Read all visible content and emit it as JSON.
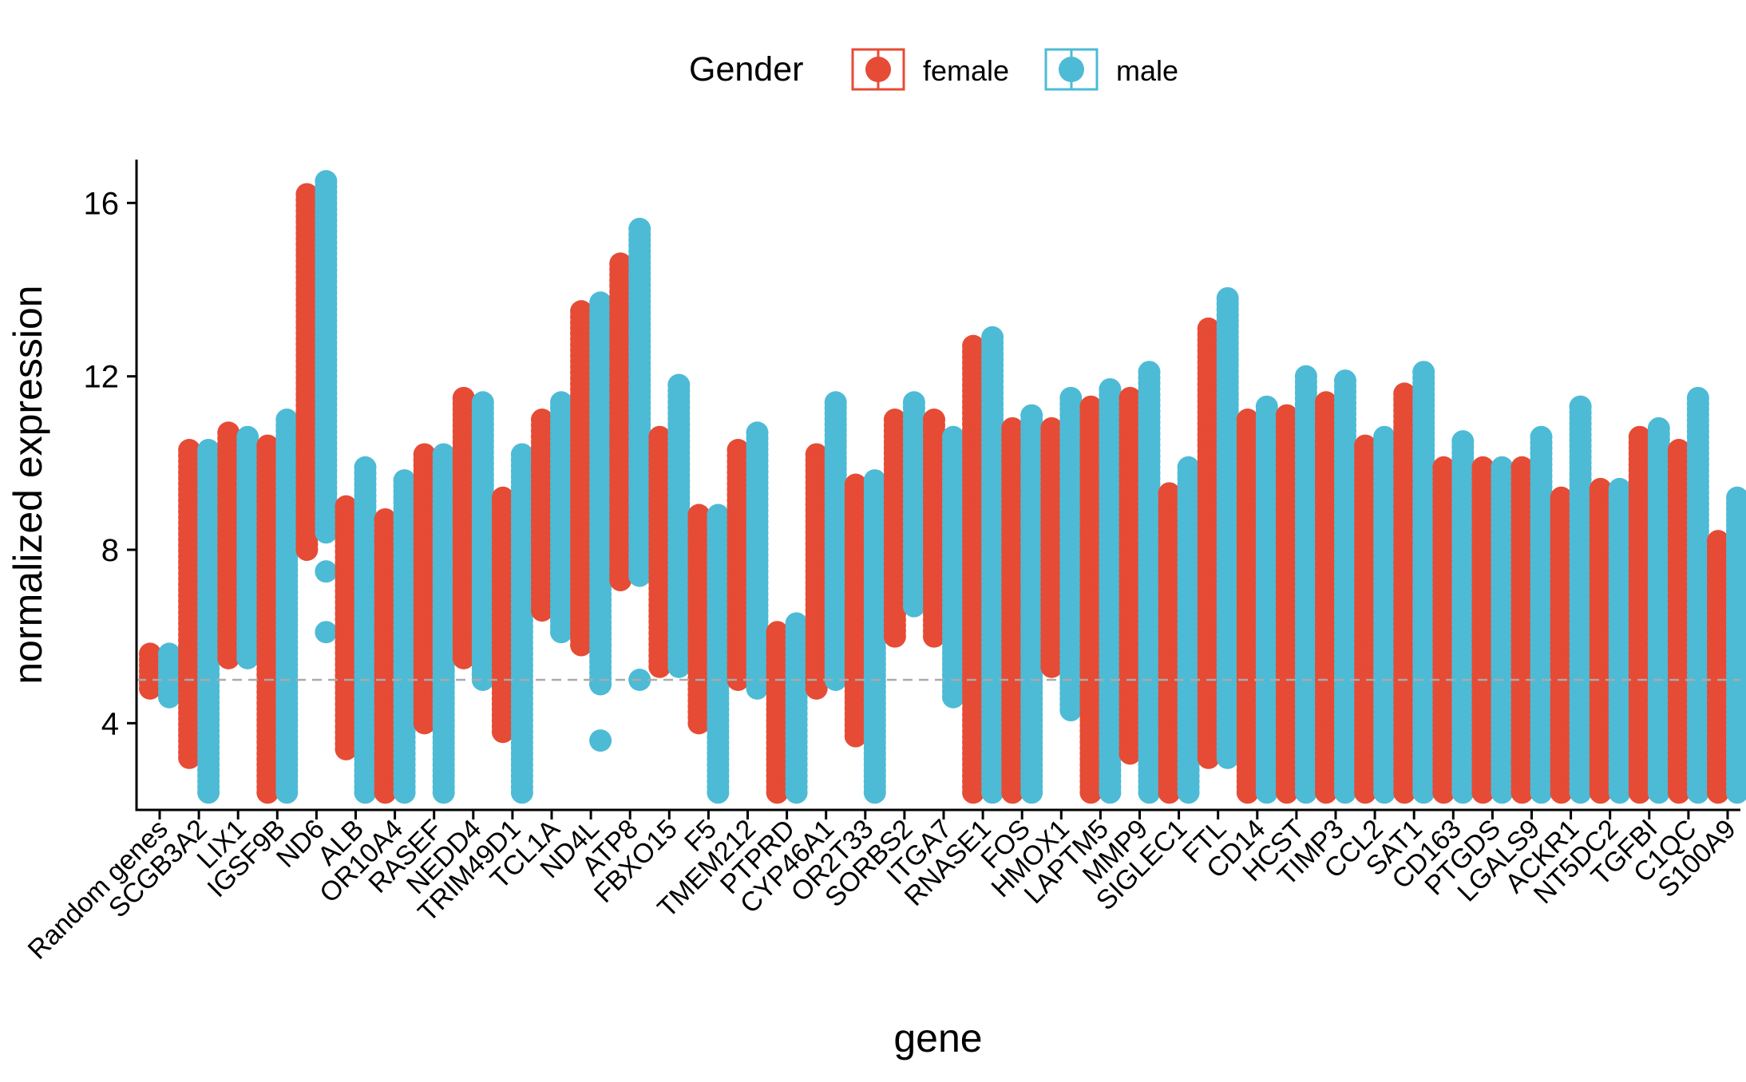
{
  "chart_data": {
    "type": "scatter",
    "subtype": "dot-range per gene by gender",
    "xlabel": "gene",
    "ylabel": "normalized expression",
    "ylim": [
      2,
      17
    ],
    "yticks": [
      4,
      8,
      12,
      16
    ],
    "reference_line": {
      "y": 5,
      "style": "dashed",
      "color": "#aaaaaa"
    },
    "legend": {
      "title": "Gender",
      "position": "top",
      "entries": [
        "female",
        "male"
      ]
    },
    "colors": {
      "female": "#E64B35",
      "male": "#4DBBD5"
    },
    "categories": [
      "Random genes",
      "SCGB3A2",
      "LIX1",
      "IGSF9B",
      "ND6",
      "ALB",
      "OR10A4",
      "RASEF",
      "NEDD4",
      "TRIM49D1",
      "TCL1A",
      "ND4L",
      "ATP8",
      "FBXO15",
      "F5",
      "TMEM212",
      "PTPRD",
      "CYP46A1",
      "OR2T33",
      "SORBS2",
      "ITGA7",
      "RNASE1",
      "FOS",
      "HMOX1",
      "LAPTM5",
      "MMP9",
      "SIGLEC1",
      "FTL",
      "CD14",
      "HCST",
      "TIMP3",
      "CCL2",
      "SAT1",
      "CD163",
      "PTGDS",
      "LGALS9",
      "ACKR1",
      "NT5DC2",
      "TGFBI",
      "C1QC",
      "S100A9"
    ],
    "series": [
      {
        "name": "female",
        "ranges": [
          [
            4.8,
            5.6
          ],
          [
            3.2,
            10.3
          ],
          [
            5.5,
            10.7
          ],
          [
            2.4,
            10.4
          ],
          [
            8.0,
            16.2
          ],
          [
            3.4,
            9.0
          ],
          [
            2.4,
            8.7
          ],
          [
            4.0,
            10.2
          ],
          [
            5.5,
            11.5
          ],
          [
            3.8,
            9.2
          ],
          [
            6.6,
            11.0
          ],
          [
            5.8,
            13.5
          ],
          [
            7.3,
            14.6
          ],
          [
            5.3,
            10.6
          ],
          [
            4.0,
            8.8
          ],
          [
            5.0,
            10.3
          ],
          [
            2.4,
            6.1
          ],
          [
            4.8,
            10.2
          ],
          [
            3.7,
            9.5
          ],
          [
            6.0,
            11.0
          ],
          [
            6.0,
            11.0
          ],
          [
            2.4,
            12.7
          ],
          [
            2.4,
            10.8
          ],
          [
            5.3,
            10.8
          ],
          [
            2.4,
            11.3
          ],
          [
            3.3,
            11.5
          ],
          [
            2.4,
            9.3
          ],
          [
            3.2,
            13.1
          ],
          [
            2.4,
            11.0
          ],
          [
            2.4,
            11.1
          ],
          [
            2.4,
            11.4
          ],
          [
            2.4,
            10.4
          ],
          [
            2.4,
            11.6
          ],
          [
            2.4,
            9.9
          ],
          [
            2.4,
            9.9
          ],
          [
            2.4,
            9.9
          ],
          [
            2.4,
            9.2
          ],
          [
            2.4,
            9.4
          ],
          [
            2.4,
            10.6
          ],
          [
            2.4,
            10.3
          ],
          [
            2.4,
            8.2
          ]
        ],
        "outliers": [
          [],
          [],
          [],
          [],
          [],
          [],
          [],
          [],
          [],
          [],
          [],
          [],
          [],
          [],
          [],
          [],
          [],
          [],
          [],
          [],
          [],
          [],
          [],
          [],
          [],
          [],
          [],
          [],
          [],
          [],
          [],
          [],
          [],
          [],
          [],
          [
            3.1
          ],
          [],
          [],
          [],
          [],
          []
        ]
      },
      {
        "name": "male",
        "ranges": [
          [
            4.6,
            5.6
          ],
          [
            2.4,
            10.3
          ],
          [
            5.5,
            10.6
          ],
          [
            2.4,
            11.0
          ],
          [
            8.4,
            16.5
          ],
          [
            2.4,
            9.9
          ],
          [
            2.4,
            9.6
          ],
          [
            2.4,
            10.2
          ],
          [
            5.0,
            11.4
          ],
          [
            2.4,
            10.2
          ],
          [
            6.1,
            11.4
          ],
          [
            4.9,
            13.7
          ],
          [
            7.4,
            15.4
          ],
          [
            5.3,
            11.8
          ],
          [
            2.4,
            8.8
          ],
          [
            4.8,
            10.7
          ],
          [
            2.4,
            6.3
          ],
          [
            5.0,
            11.4
          ],
          [
            2.4,
            9.6
          ],
          [
            6.7,
            11.4
          ],
          [
            4.6,
            10.6
          ],
          [
            2.4,
            12.9
          ],
          [
            2.4,
            11.1
          ],
          [
            4.3,
            11.5
          ],
          [
            2.4,
            11.7
          ],
          [
            2.4,
            12.1
          ],
          [
            2.4,
            9.9
          ],
          [
            3.2,
            13.8
          ],
          [
            2.4,
            11.3
          ],
          [
            2.4,
            12.0
          ],
          [
            2.4,
            11.9
          ],
          [
            2.4,
            10.6
          ],
          [
            2.4,
            12.1
          ],
          [
            2.4,
            10.5
          ],
          [
            2.4,
            9.9
          ],
          [
            2.4,
            10.6
          ],
          [
            2.4,
            11.3
          ],
          [
            2.4,
            9.4
          ],
          [
            2.4,
            10.8
          ],
          [
            2.4,
            11.5
          ],
          [
            2.4,
            9.2
          ]
        ],
        "outliers": [
          [],
          [],
          [],
          [],
          [
            6.1,
            7.5
          ],
          [],
          [],
          [],
          [],
          [],
          [],
          [
            3.6,
            4.9,
            5.8
          ],
          [
            5.0
          ],
          [],
          [],
          [],
          [],
          [],
          [],
          [],
          [],
          [],
          [],
          [],
          [],
          [],
          [],
          [],
          [],
          [],
          [],
          [],
          [],
          [],
          [],
          [],
          [
            11.3
          ],
          [],
          [],
          [],
          []
        ]
      }
    ]
  }
}
